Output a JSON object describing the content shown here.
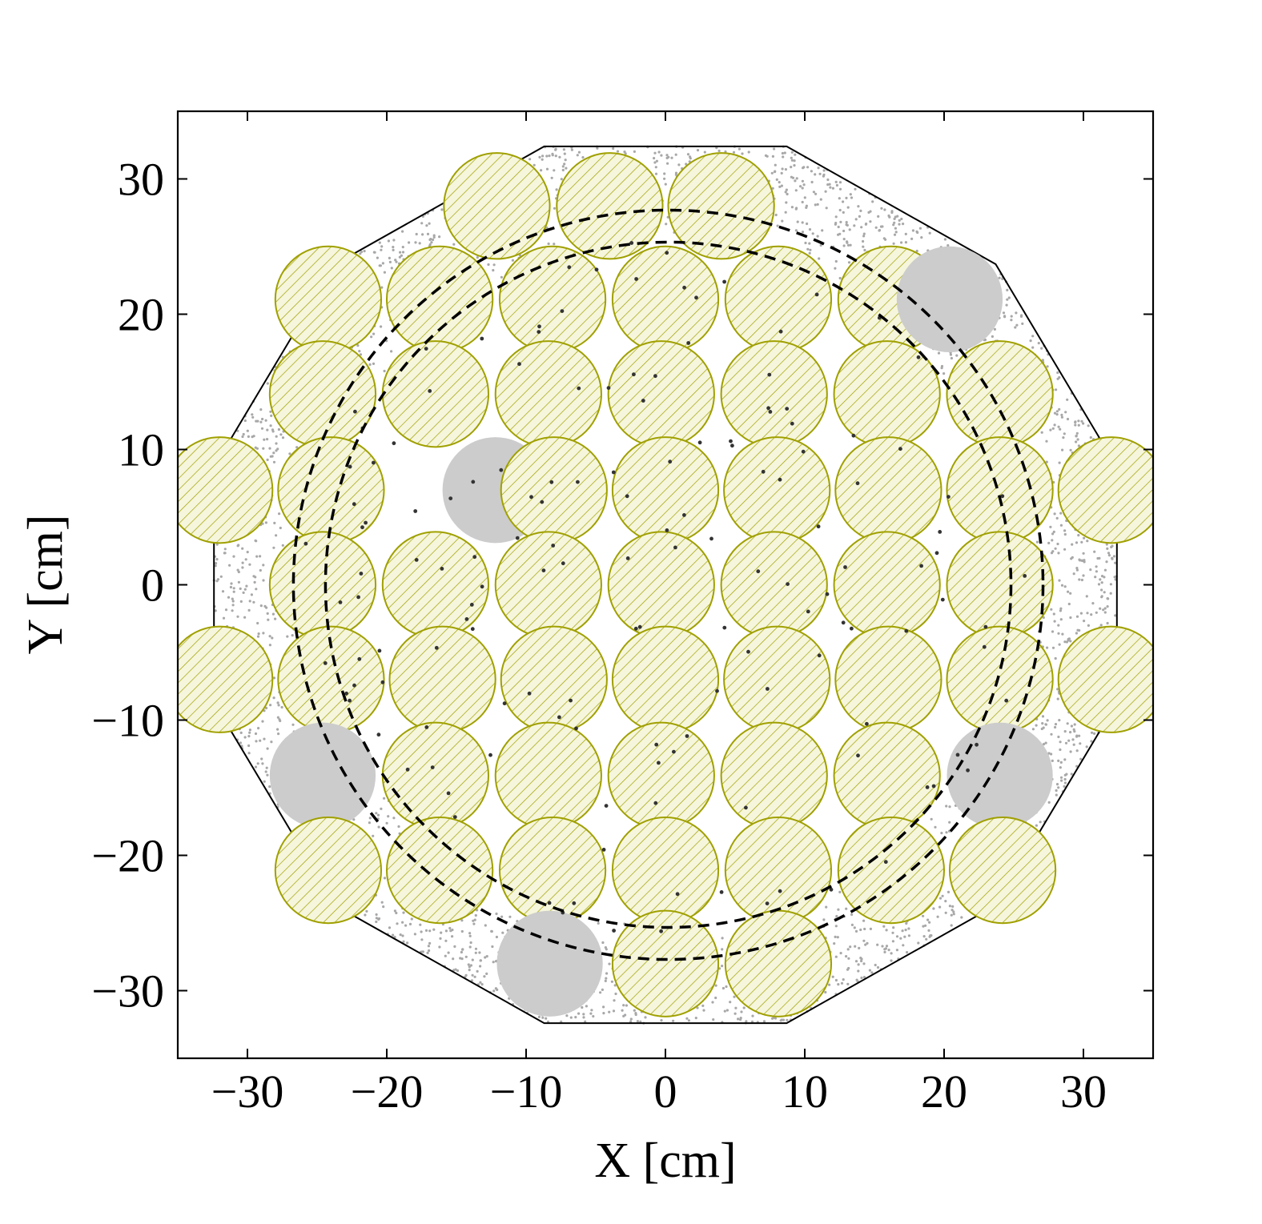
{
  "chart_data": {
    "type": "scatter",
    "title": "",
    "xlabel": "X [cm]",
    "ylabel": "Y [cm]",
    "xlim": [
      -35,
      35
    ],
    "ylim": [
      -35,
      35
    ],
    "x_ticks": [
      -30,
      -20,
      -10,
      0,
      10,
      20,
      30
    ],
    "y_ticks": [
      -30,
      -20,
      -10,
      0,
      10,
      20,
      30
    ],
    "x_tick_labels": [
      "−30",
      "−20",
      "−10",
      "0",
      "10",
      "20",
      "30"
    ],
    "y_tick_labels": [
      "30",
      "20",
      "10",
      "0",
      "−10",
      "−20",
      "−30"
    ],
    "grid": false,
    "legend": "none",
    "colors": {
      "pmt_active": "#a0a000",
      "pmt_fill": "#f6f6dc",
      "pmt_inactive": "#cccccc",
      "outline": "#000000",
      "events_outer": "#a8a8a8",
      "events_inner": "#333333"
    },
    "boundary": {
      "shape": "dodecagon",
      "vertices": [
        [
          8.7,
          32.4
        ],
        [
          23.7,
          23.7
        ],
        [
          32.4,
          8.7
        ],
        [
          32.4,
          -8.7
        ],
        [
          23.7,
          -23.7
        ],
        [
          8.7,
          -32.4
        ],
        [
          -8.7,
          -32.4
        ],
        [
          -23.7,
          -23.7
        ],
        [
          -32.4,
          -8.7
        ],
        [
          -32.4,
          8.7
        ],
        [
          -23.7,
          23.7
        ],
        [
          -8.7,
          32.4
        ]
      ]
    },
    "pmt_radius": 3.8,
    "pmt_rows": [
      {
        "y": 28.0,
        "x": [
          -12.1,
          -4.0,
          4.0
        ]
      },
      {
        "y": 21.1,
        "x": [
          -24.2,
          -16.2,
          -8.1,
          0.0,
          8.1,
          16.2,
          20.4
        ]
      },
      {
        "y": 14.1,
        "x": [
          -24.6,
          -16.5,
          -8.4,
          -0.3,
          7.8,
          15.9,
          24.0
        ]
      },
      {
        "y": 7.0,
        "x": [
          -32.0,
          -24.0,
          -12.2,
          -8.0,
          0.0,
          8.0,
          16.0,
          24.0,
          32.0
        ]
      },
      {
        "y": 0.0,
        "x": [
          -24.6,
          -16.5,
          -8.4,
          -0.3,
          7.8,
          15.9,
          24.0
        ]
      },
      {
        "y": -7.0,
        "x": [
          -32.0,
          -24.0,
          -16.0,
          -8.0,
          0.0,
          8.0,
          16.0,
          24.0,
          32.0
        ]
      },
      {
        "y": -14.1,
        "x": [
          -24.6,
          -16.5,
          -8.4,
          -0.3,
          7.8,
          15.9,
          24.0
        ]
      },
      {
        "y": -21.1,
        "x": [
          -24.2,
          -16.2,
          -8.1,
          0.0,
          8.1,
          16.2,
          24.2
        ]
      },
      {
        "y": -28.0,
        "x": [
          -8.3,
          0.0,
          8.1
        ]
      }
    ],
    "pmts_inactive": [
      {
        "x": 20.4,
        "y": 21.1
      },
      {
        "x": -12.2,
        "y": 7.0
      },
      {
        "x": -24.6,
        "y": -14.1
      },
      {
        "x": 24.0,
        "y": -14.1
      },
      {
        "x": -8.3,
        "y": -28.0
      }
    ],
    "fiducial_circles": [
      {
        "cx": 0.2,
        "cy": 0.0,
        "r": 24.6,
        "style": "dashed"
      },
      {
        "cx": 0.2,
        "cy": 0.0,
        "r": 26.9,
        "style": "dashed"
      }
    ],
    "event_counts": {
      "outer_band": 3200,
      "inner": 150
    }
  }
}
